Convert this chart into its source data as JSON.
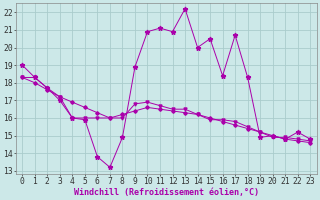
{
  "bg_color": "#cce8e8",
  "grid_color": "#aacccc",
  "line_color": "#aa00aa",
  "marker_color": "#aa00aa",
  "xlabel": "Windchill (Refroidissement éolien,°C)",
  "xlabel_fontsize": 6.0,
  "tick_fontsize": 5.8,
  "ylim": [
    12.8,
    22.5
  ],
  "xlim": [
    -0.5,
    23.5
  ],
  "yticks": [
    13,
    14,
    15,
    16,
    17,
    18,
    19,
    20,
    21,
    22
  ],
  "xticks": [
    0,
    1,
    2,
    3,
    4,
    5,
    6,
    7,
    8,
    9,
    10,
    11,
    12,
    13,
    14,
    15,
    16,
    17,
    18,
    19,
    20,
    21,
    22,
    23
  ],
  "series1_x": [
    0,
    1,
    2,
    3,
    4,
    5,
    6,
    7,
    8,
    9,
    10,
    11,
    12,
    13,
    14,
    15,
    16,
    17,
    18,
    19,
    20,
    21,
    22,
    23
  ],
  "series1_y": [
    19.0,
    18.3,
    17.7,
    17.0,
    16.0,
    15.9,
    13.8,
    13.2,
    14.9,
    18.9,
    20.9,
    21.1,
    20.9,
    22.2,
    20.0,
    20.5,
    18.4,
    20.7,
    18.3,
    14.9,
    15.0,
    14.8,
    15.2,
    14.8
  ],
  "series2_x": [
    0,
    1,
    2,
    3,
    4,
    5,
    6,
    7,
    8,
    9,
    10,
    11,
    12,
    13,
    14,
    15,
    16,
    17,
    18,
    19,
    20,
    21,
    22,
    23
  ],
  "series2_y": [
    18.3,
    18.3,
    17.7,
    17.2,
    16.0,
    16.0,
    16.0,
    16.0,
    16.0,
    16.8,
    16.9,
    16.7,
    16.5,
    16.5,
    16.2,
    15.9,
    15.9,
    15.8,
    15.5,
    15.2,
    14.9,
    14.9,
    14.8,
    14.7
  ],
  "series3_x": [
    0,
    1,
    2,
    3,
    4,
    5,
    6,
    7,
    8,
    9,
    10,
    11,
    12,
    13,
    14,
    15,
    16,
    17,
    18,
    19,
    20,
    21,
    22,
    23
  ],
  "series3_y": [
    18.3,
    18.0,
    17.6,
    17.2,
    16.9,
    16.6,
    16.3,
    16.0,
    16.2,
    16.4,
    16.6,
    16.5,
    16.4,
    16.3,
    16.2,
    16.0,
    15.8,
    15.6,
    15.4,
    15.2,
    15.0,
    14.8,
    14.7,
    14.6
  ]
}
